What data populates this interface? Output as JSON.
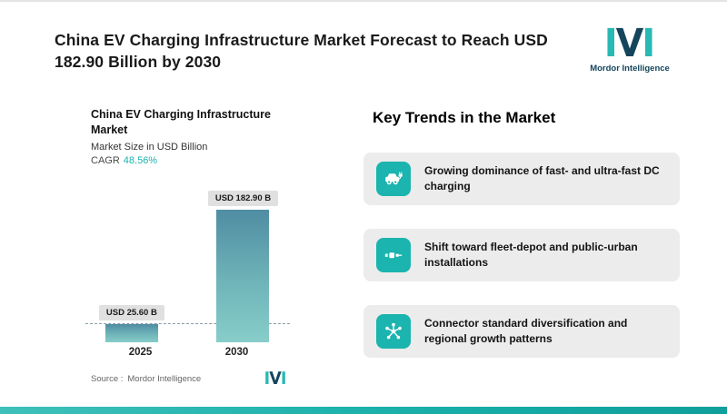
{
  "header": {
    "title": "China EV Charging Infrastructure Market Forecast to Reach USD 182.90 Billion by 2030",
    "logo_text": "Mordor Intelligence"
  },
  "chart": {
    "title": "China EV Charging Infrastructure Market",
    "subtitle": "Market Size in USD Billion",
    "cagr_label": "CAGR",
    "cagr_value": "48.56%",
    "source_label": "Source :",
    "source_value": "Mordor Intelligence"
  },
  "chart_data": {
    "type": "bar",
    "title": "China EV Charging Infrastructure Market",
    "ylabel": "Market Size in USD Billion",
    "categories": [
      "2025",
      "2030"
    ],
    "values": [
      25.6,
      182.9
    ],
    "value_labels": [
      "USD 25.60 B",
      "USD 182.90 B"
    ],
    "ylim": [
      0,
      200
    ],
    "annotations": [
      "CAGR 48.56%"
    ],
    "reference_line": 25.6,
    "grid": false,
    "legend": "none"
  },
  "trends": {
    "heading": "Key Trends in the Market",
    "items": [
      {
        "icon": "ev-car-icon",
        "text": "Growing dominance of fast- and ultra-fast DC charging"
      },
      {
        "icon": "charging-plug-icon",
        "text": "Shift toward fleet-depot and public-urban installations"
      },
      {
        "icon": "connector-network-icon",
        "text": "Connector standard diversification and regional growth patterns"
      }
    ]
  },
  "colors": {
    "accent_teal": "#1bb4ae",
    "navy": "#14455c",
    "card_bg": "#ececec",
    "bar_gradient_top": "#4f8da3",
    "bar_gradient_bottom": "#87cdca",
    "tag_bg": "#e0e0e0"
  }
}
